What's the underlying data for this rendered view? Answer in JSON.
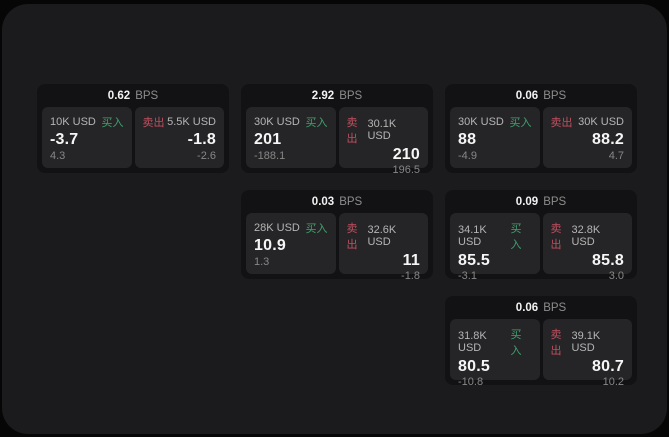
{
  "labels": {
    "buy": "买入",
    "sell": "卖出",
    "bps_unit": "BPS"
  },
  "colors": {
    "buy": "#3fa26d",
    "sell": "#c14f5e",
    "board_background": "#1b1b1d",
    "card_background": "#121214",
    "panel_background": "#252528"
  },
  "cards": [
    {
      "grid": {
        "row": 1,
        "col": 1
      },
      "bps": "0.62",
      "buy": {
        "size": "10K USD",
        "value": "-3.7",
        "delta": "4.3"
      },
      "sell": {
        "size": "5.5K USD",
        "value": "-1.8",
        "delta": "-2.6"
      }
    },
    {
      "grid": {
        "row": 1,
        "col": 2
      },
      "bps": "2.92",
      "buy": {
        "size": "30K USD",
        "value": "201",
        "delta": "-188.1"
      },
      "sell": {
        "size": "30.1K USD",
        "value": "210",
        "delta": "196.5"
      }
    },
    {
      "grid": {
        "row": 1,
        "col": 3
      },
      "bps": "0.06",
      "buy": {
        "size": "30K USD",
        "value": "88",
        "delta": "-4.9"
      },
      "sell": {
        "size": "30K USD",
        "value": "88.2",
        "delta": "4.7"
      }
    },
    {
      "grid": {
        "row": 2,
        "col": 2
      },
      "bps": "0.03",
      "buy": {
        "size": "28K USD",
        "value": "10.9",
        "delta": "1.3"
      },
      "sell": {
        "size": "32.6K USD",
        "value": "11",
        "delta": "-1.8"
      }
    },
    {
      "grid": {
        "row": 2,
        "col": 3
      },
      "bps": "0.09",
      "buy": {
        "size": "34.1K USD",
        "value": "85.5",
        "delta": "-3.1"
      },
      "sell": {
        "size": "32.8K USD",
        "value": "85.8",
        "delta": "3.0"
      }
    },
    {
      "grid": {
        "row": 3,
        "col": 3
      },
      "bps": "0.06",
      "buy": {
        "size": "31.8K USD",
        "value": "80.5",
        "delta": "-10.8"
      },
      "sell": {
        "size": "39.1K USD",
        "value": "80.7",
        "delta": "10.2"
      }
    }
  ]
}
